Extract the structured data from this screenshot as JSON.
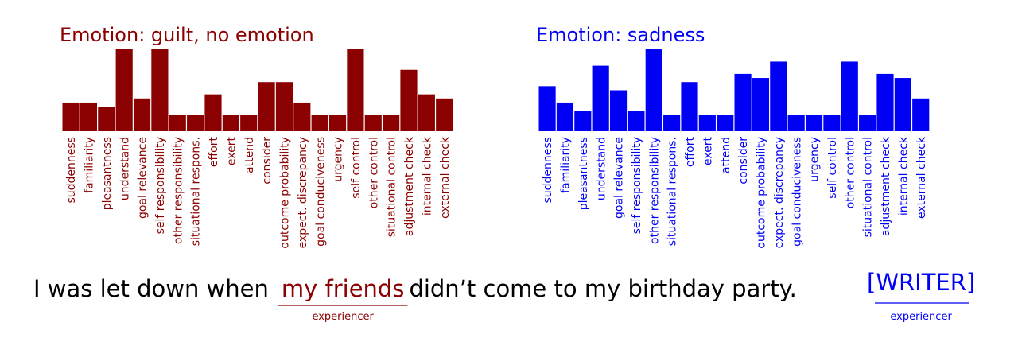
{
  "chart_data": [
    {
      "type": "bar",
      "title": "Emotion: guilt, no emotion",
      "color": "#8b0000",
      "ylim": [
        0,
        5
      ],
      "categories": [
        "suddenness",
        "familiarity",
        "pleasantness",
        "understand",
        "goal relevance",
        "self responsibility",
        "other responsibility",
        "situational respons.",
        "effort",
        "exert",
        "attend",
        "consider",
        "outcome probability",
        "expect. discrepancy",
        "goal conduciveness",
        "urgency",
        "self control",
        "other control",
        "situational control",
        "adjustment check",
        "internal check",
        "external check"
      ],
      "values": [
        1.75,
        1.75,
        1.5,
        5,
        2,
        5,
        1,
        1,
        2.25,
        1,
        1,
        3,
        3,
        1.75,
        1,
        1,
        5,
        1,
        1,
        3.75,
        2.25,
        2
      ]
    },
    {
      "type": "bar",
      "title": "Emotion: sadness",
      "color": "#0000f5",
      "ylim": [
        0,
        5
      ],
      "categories": [
        "suddenness",
        "familiarity",
        "pleasantness",
        "understand",
        "goal relevance",
        "self responsibility",
        "other responsibility",
        "situational respons.",
        "effort",
        "exert",
        "attend",
        "consider",
        "outcome probability",
        "expect. discrepancy",
        "goal conduciveness",
        "urgency",
        "self control",
        "other control",
        "situational control",
        "adjustment check",
        "internal check",
        "external check"
      ],
      "values": [
        2.75,
        1.75,
        1.25,
        4,
        2.5,
        1.25,
        5,
        1,
        3,
        1,
        1,
        3.5,
        3.25,
        4.25,
        1,
        1,
        1,
        4.25,
        1,
        3.5,
        3.25,
        2
      ]
    }
  ],
  "sentence": {
    "before": "I was let down when",
    "highlight": "my friends",
    "highlight_role": "experiencer",
    "after": "didn’t come to my birthday party.",
    "writer": "[WRITER]",
    "writer_role": "experiencer"
  }
}
